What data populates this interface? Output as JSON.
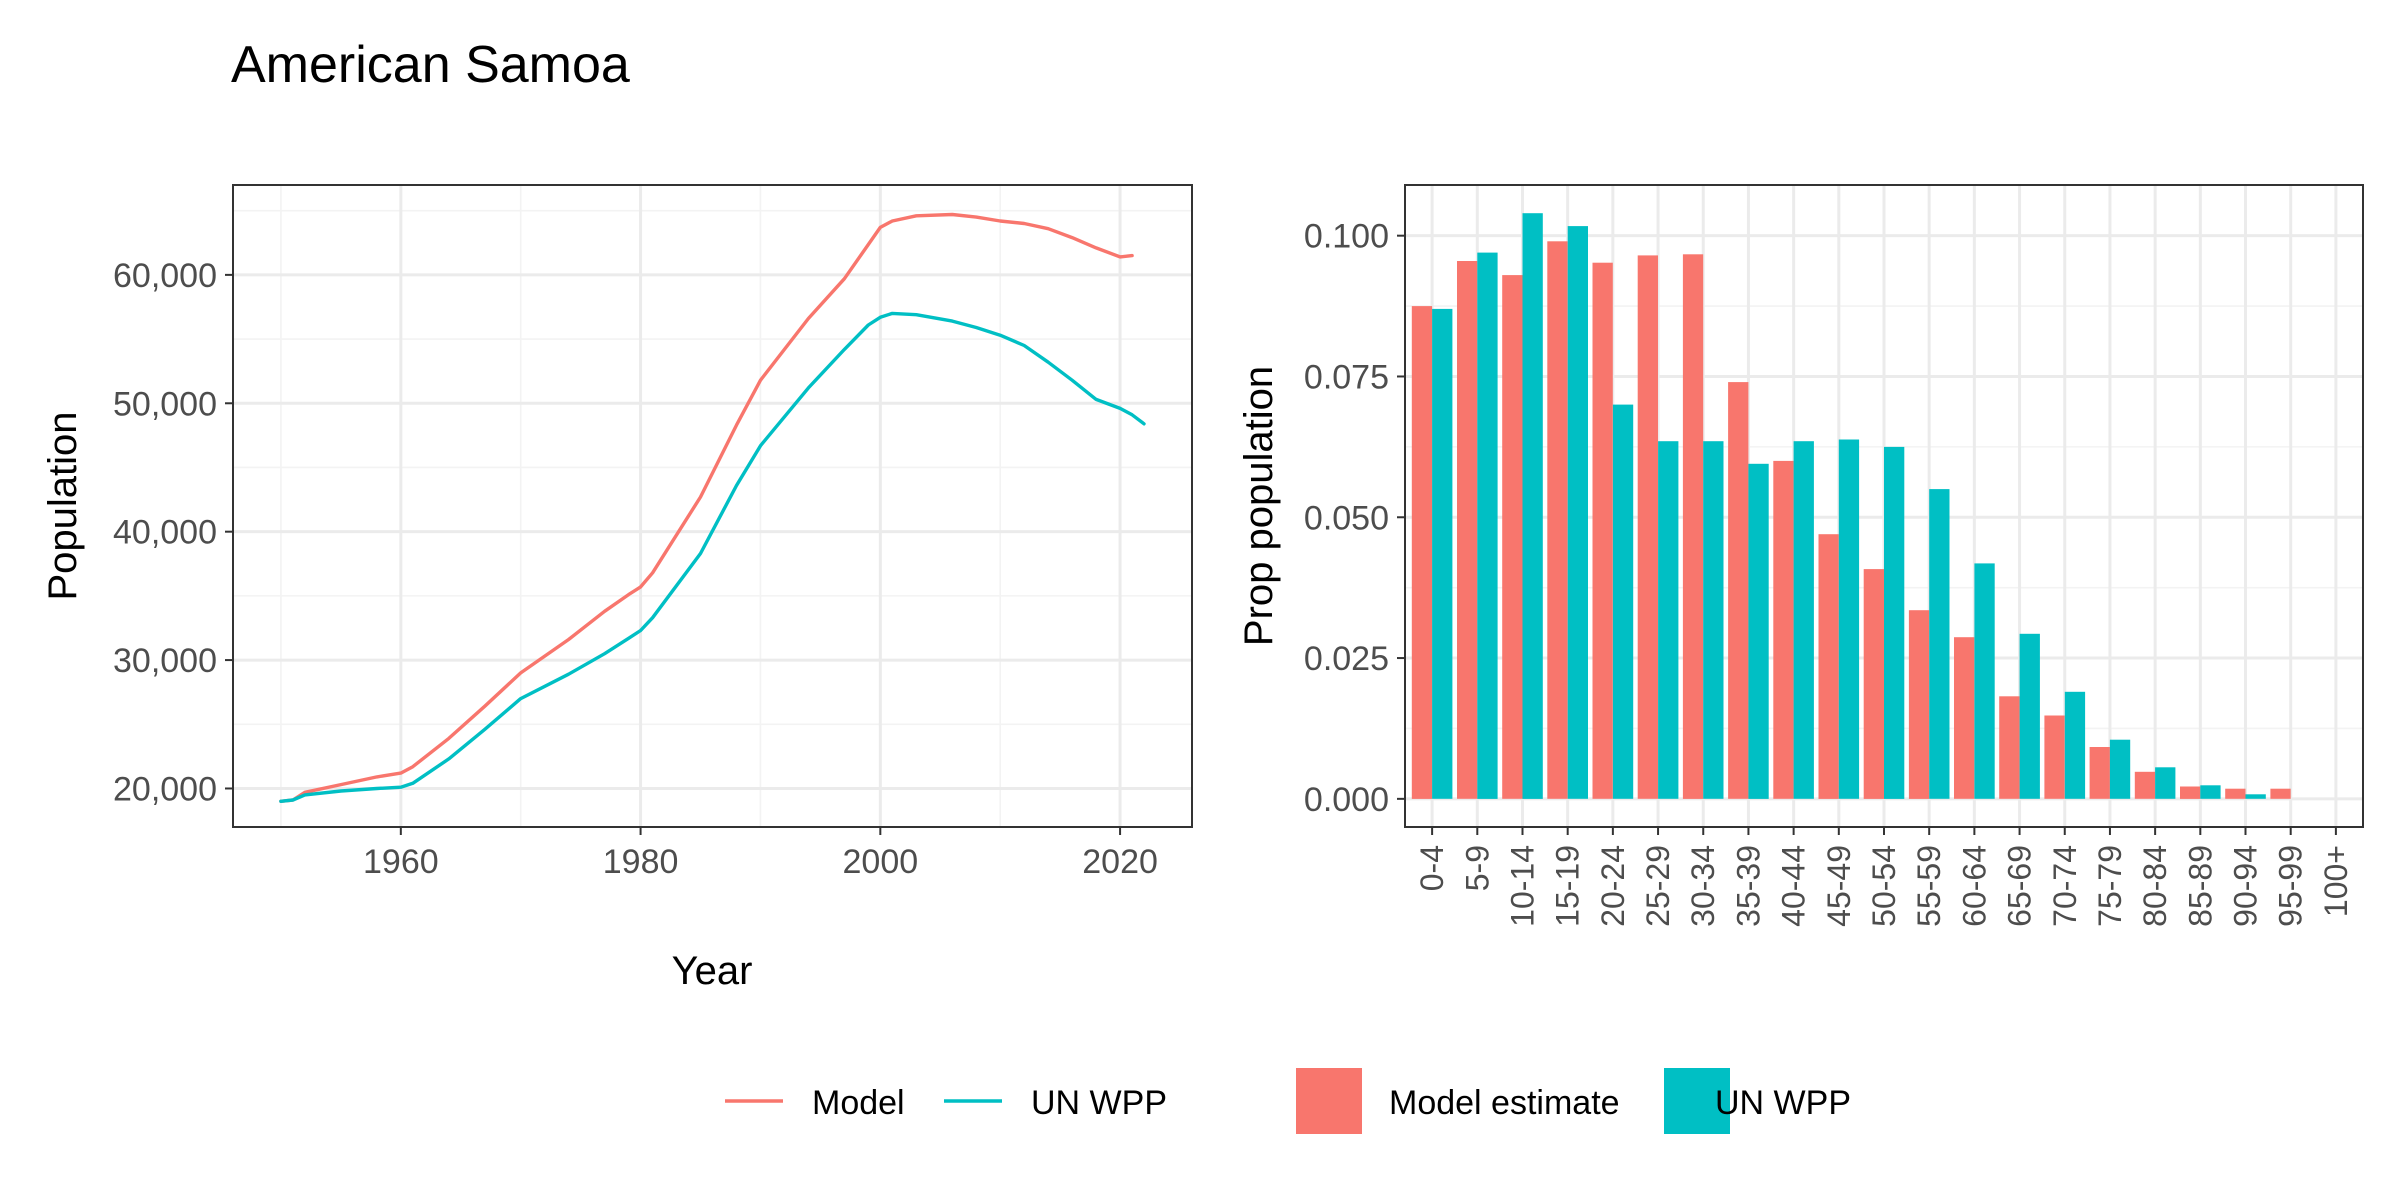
{
  "title": "American Samoa",
  "colors": {
    "model": "#F8766D",
    "un": "#00BFC4",
    "grid_major": "#EBEBEB",
    "grid_minor": "#F3F3F3",
    "axis_text": "#4D4D4D",
    "panel_border": "#333333"
  },
  "chart_data": [
    {
      "type": "line",
      "xlabel": "Year",
      "ylabel": "Population",
      "xlim": [
        1946,
        2026
      ],
      "ylim": [
        17000,
        67000
      ],
      "x_ticks": [
        1960,
        1980,
        2000,
        2020
      ],
      "x_tick_labels": [
        "1960",
        "1980",
        "2000",
        "2020"
      ],
      "y_ticks": [
        20000,
        30000,
        40000,
        50000,
        60000
      ],
      "y_tick_labels": [
        "20,000",
        "30,000",
        "40,000",
        "50,000",
        "60,000"
      ],
      "series": [
        {
          "name": "Model",
          "color": "#F8766D",
          "x": [
            1950,
            1951,
            1952,
            1955,
            1958,
            1960,
            1961,
            1964,
            1967,
            1970,
            1974,
            1977,
            1979,
            1980,
            1981,
            1985,
            1988,
            1990,
            1994,
            1997,
            2000,
            2001,
            2003,
            2006,
            2008,
            2010,
            2012,
            2014,
            2016,
            2018,
            2020,
            2021
          ],
          "y": [
            19000,
            19100,
            19700,
            20300,
            20900,
            21200,
            21700,
            23900,
            26400,
            29000,
            31600,
            33800,
            35100,
            35700,
            36800,
            42700,
            48300,
            51800,
            56600,
            59700,
            63700,
            64200,
            64600,
            64700,
            64500,
            64200,
            64000,
            63600,
            62900,
            62100,
            61400,
            61500
          ]
        },
        {
          "name": "UN WPP",
          "color": "#00BFC4",
          "x": [
            1950,
            1951,
            1952,
            1955,
            1958,
            1960,
            1961,
            1964,
            1967,
            1970,
            1974,
            1977,
            1979,
            1980,
            1981,
            1985,
            1988,
            1990,
            1994,
            1997,
            1999,
            2000,
            2001,
            2003,
            2006,
            2008,
            2010,
            2012,
            2014,
            2016,
            2018,
            2020,
            2021,
            2022
          ],
          "y": [
            19000,
            19100,
            19500,
            19800,
            20000,
            20100,
            20400,
            22300,
            24600,
            27000,
            28900,
            30500,
            31700,
            32300,
            33300,
            38300,
            43600,
            46700,
            51200,
            54200,
            56100,
            56700,
            57000,
            56900,
            56400,
            55900,
            55300,
            54500,
            53200,
            51800,
            50300,
            49600,
            49100,
            48400
          ]
        }
      ]
    },
    {
      "type": "bar",
      "xlabel": "",
      "ylabel": "Prop population",
      "ylim": [
        -0.005,
        0.109
      ],
      "y_ticks": [
        0,
        0.025,
        0.05,
        0.075,
        0.1
      ],
      "y_tick_labels": [
        "0.000",
        "0.025",
        "0.050",
        "0.075",
        "0.100"
      ],
      "categories": [
        "0-4",
        "5-9",
        "10-14",
        "15-19",
        "20-24",
        "25-29",
        "30-34",
        "35-39",
        "40-44",
        "45-49",
        "50-54",
        "55-59",
        "60-64",
        "65-69",
        "70-74",
        "75-79",
        "80-84",
        "85-89",
        "90-94",
        "95-99",
        "100+"
      ],
      "series": [
        {
          "name": "Model estimate",
          "color": "#F8766D",
          "values": [
            0.0875,
            0.0955,
            0.093,
            0.099,
            0.0952,
            0.0965,
            0.0967,
            0.074,
            0.06,
            0.047,
            0.0408,
            0.0335,
            0.0287,
            0.0182,
            0.0148,
            0.0092,
            0.0048,
            0.0022,
            0.0018,
            0.0018,
            0
          ]
        },
        {
          "name": "UN WPP",
          "color": "#00BFC4",
          "values": [
            0.087,
            0.097,
            0.104,
            0.1017,
            0.07,
            0.0635,
            0.0635,
            0.0595,
            0.0635,
            0.0638,
            0.0625,
            0.055,
            0.0418,
            0.0293,
            0.019,
            0.0105,
            0.0056,
            0.0024,
            0.0008,
            0,
            0
          ]
        }
      ]
    }
  ],
  "legends": [
    {
      "items": [
        "Model",
        "UN WPP"
      ]
    },
    {
      "items": [
        "Model estimate",
        "UN WPP"
      ]
    }
  ]
}
